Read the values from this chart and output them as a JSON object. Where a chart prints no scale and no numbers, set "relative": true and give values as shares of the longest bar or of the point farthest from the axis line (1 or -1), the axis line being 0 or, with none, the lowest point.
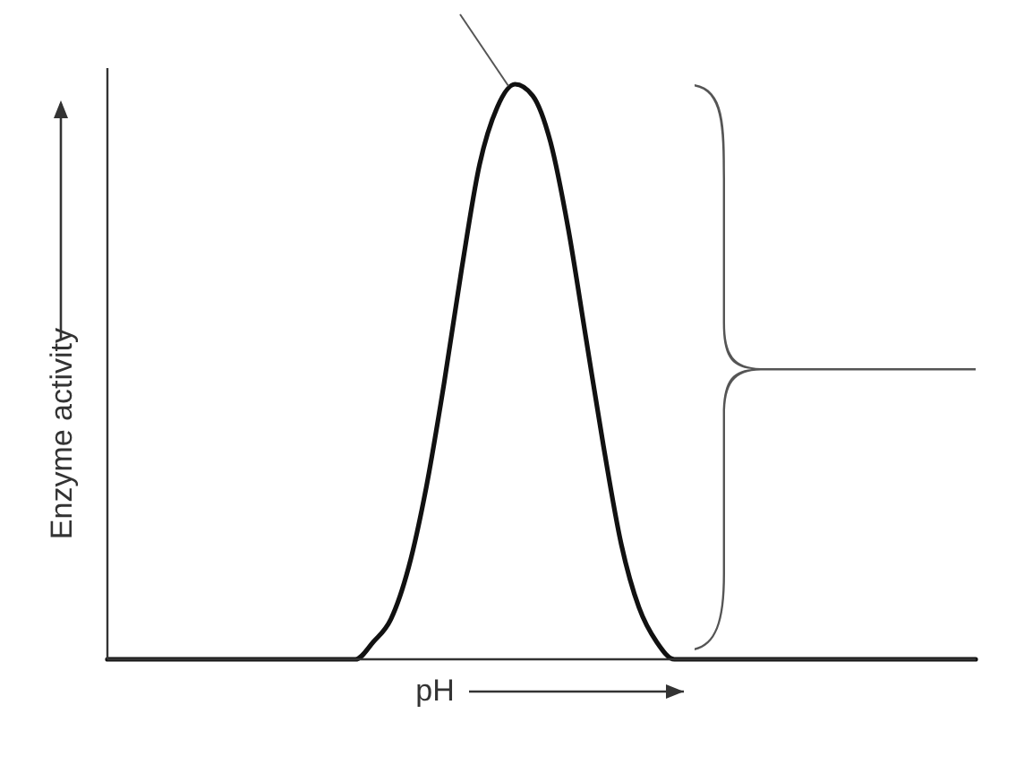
{
  "chart_data": {
    "type": "line",
    "relative": true,
    "xlabel": "pH",
    "ylabel": "Enzyme activity",
    "categories": [
      null,
      null,
      null,
      null,
      null,
      null,
      null,
      null,
      null,
      null,
      null,
      null,
      null,
      null,
      null,
      null,
      null,
      null,
      null,
      null,
      null,
      null,
      null,
      null,
      null,
      null,
      null,
      null,
      null,
      null,
      null,
      null,
      null,
      null,
      null,
      null,
      null,
      null,
      null,
      null,
      null,
      null,
      null,
      null,
      null,
      null,
      null,
      null,
      null,
      null
    ],
    "series": [
      {
        "color": "#111111",
        "values": [
          0,
          0,
          0,
          0,
          0,
          0,
          0,
          0,
          0,
          0,
          0,
          0,
          0,
          0,
          0,
          0.03,
          0.07,
          0.16,
          0.3,
          0.48,
          0.68,
          0.86,
          0.96,
          1,
          0.98,
          0.9,
          0.75,
          0.56,
          0.37,
          0.2,
          0.09,
          0.03,
          0,
          0,
          0,
          0,
          0,
          0,
          0,
          0,
          0,
          0,
          0,
          0,
          0,
          0,
          0,
          0,
          0,
          0
        ]
      }
    ],
    "marker": "none",
    "line_style": "solid"
  }
}
